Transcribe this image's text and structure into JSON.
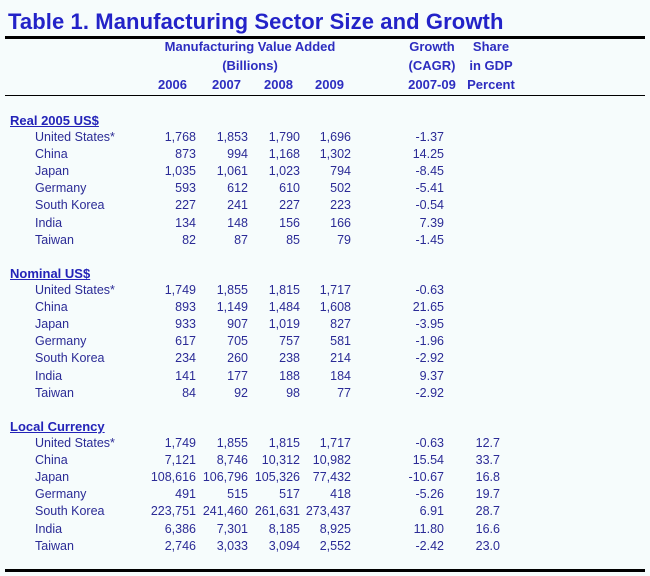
{
  "title": "Table 1. Manufacturing Sector Size and Growth",
  "header": {
    "mva_line1": "Manufacturing Value Added",
    "mva_line2": "(Billions)",
    "years": [
      "2006",
      "2007",
      "2008",
      "2009"
    ],
    "growth_line1": "Growth",
    "growth_line2": "(CAGR)",
    "growth_line3": "2007-09",
    "share_line1": "Share",
    "share_line2": "in GDP",
    "share_line3": "Percent"
  },
  "sections": [
    {
      "label": "Real 2005 US$",
      "rows": [
        {
          "country": "United States*",
          "values": [
            "1,768",
            "1,853",
            "1,790",
            "1,696"
          ],
          "growth": "-1.37",
          "share": ""
        },
        {
          "country": "China",
          "values": [
            "873",
            "994",
            "1,168",
            "1,302"
          ],
          "growth": "14.25",
          "share": ""
        },
        {
          "country": "Japan",
          "values": [
            "1,035",
            "1,061",
            "1,023",
            "794"
          ],
          "growth": "-8.45",
          "share": ""
        },
        {
          "country": "Germany",
          "values": [
            "593",
            "612",
            "610",
            "502"
          ],
          "growth": "-5.41",
          "share": ""
        },
        {
          "country": "South Korea",
          "values": [
            "227",
            "241",
            "227",
            "223"
          ],
          "growth": "-0.54",
          "share": ""
        },
        {
          "country": "India",
          "values": [
            "134",
            "148",
            "156",
            "166"
          ],
          "growth": "7.39",
          "share": ""
        },
        {
          "country": "Taiwan",
          "values": [
            "82",
            "87",
            "85",
            "79"
          ],
          "growth": "-1.45",
          "share": ""
        }
      ]
    },
    {
      "label": "Nominal US$",
      "rows": [
        {
          "country": "United States*",
          "values": [
            "1,749",
            "1,855",
            "1,815",
            "1,717"
          ],
          "growth": "-0.63",
          "share": ""
        },
        {
          "country": "China",
          "values": [
            "893",
            "1,149",
            "1,484",
            "1,608"
          ],
          "growth": "21.65",
          "share": ""
        },
        {
          "country": "Japan",
          "values": [
            "933",
            "907",
            "1,019",
            "827"
          ],
          "growth": "-3.95",
          "share": ""
        },
        {
          "country": "Germany",
          "values": [
            "617",
            "705",
            "757",
            "581"
          ],
          "growth": "-1.96",
          "share": ""
        },
        {
          "country": "South Korea",
          "values": [
            "234",
            "260",
            "238",
            "214"
          ],
          "growth": "-2.92",
          "share": ""
        },
        {
          "country": "India",
          "values": [
            "141",
            "177",
            "188",
            "184"
          ],
          "growth": "9.37",
          "share": ""
        },
        {
          "country": "Taiwan",
          "values": [
            "84",
            "92",
            "98",
            "77"
          ],
          "growth": "-2.92",
          "share": ""
        }
      ]
    },
    {
      "label": "Local Currency",
      "rows": [
        {
          "country": "United States*",
          "values": [
            "1,749",
            "1,855",
            "1,815",
            "1,717"
          ],
          "growth": "-0.63",
          "share": "12.7"
        },
        {
          "country": "China",
          "values": [
            "7,121",
            "8,746",
            "10,312",
            "10,982"
          ],
          "growth": "15.54",
          "share": "33.7"
        },
        {
          "country": "Japan",
          "values": [
            "108,616",
            "106,796",
            "105,326",
            "77,432"
          ],
          "growth": "-10.67",
          "share": "16.8"
        },
        {
          "country": "Germany",
          "values": [
            "491",
            "515",
            "517",
            "418"
          ],
          "growth": "-5.26",
          "share": "19.7"
        },
        {
          "country": "South Korea",
          "values": [
            "223,751",
            "241,460",
            "261,631",
            "273,437"
          ],
          "growth": "6.91",
          "share": "28.7"
        },
        {
          "country": "India",
          "values": [
            "6,386",
            "7,301",
            "8,185",
            "8,925"
          ],
          "growth": "11.80",
          "share": "16.6"
        },
        {
          "country": "Taiwan",
          "values": [
            "2,746",
            "3,033",
            "3,094",
            "2,552"
          ],
          "growth": "-2.42",
          "share": "23.0"
        }
      ]
    }
  ]
}
